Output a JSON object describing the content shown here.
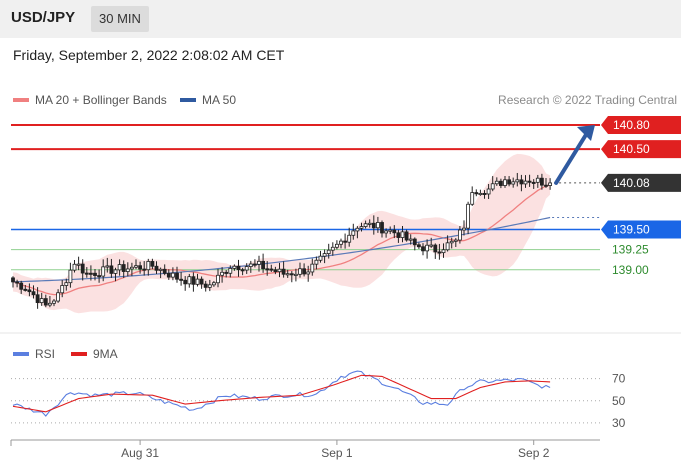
{
  "header": {
    "symbol": "USD/JPY",
    "timeframe": "30 MIN",
    "datetime": "Friday, September 2, 2022 2:08:02 AM CET"
  },
  "legend": {
    "main": [
      {
        "label": "MA 20 + Bollinger Bands",
        "color": "#f08080"
      },
      {
        "label": "MA 50",
        "color": "#2f5aa0"
      }
    ],
    "rsi": [
      {
        "label": "RSI",
        "color": "#5b7fe0"
      },
      {
        "label": "9MA",
        "color": "#e02020"
      }
    ],
    "credit": "Research © 2022 Trading Central"
  },
  "chart_data": [
    {
      "type": "candlestick",
      "title": "USD/JPY",
      "ylim": [
        138.35,
        140.95
      ],
      "levels": [
        {
          "value": 140.8,
          "label": "140.80",
          "kind": "resistance",
          "color": "#e02020"
        },
        {
          "value": 140.5,
          "label": "140.50",
          "kind": "resistance",
          "color": "#e02020"
        },
        {
          "value": 140.08,
          "label": "140.08",
          "kind": "current",
          "color": "#333333"
        },
        {
          "value": 139.5,
          "label": "139.50",
          "kind": "pivot",
          "color": "#1a66e6"
        },
        {
          "value": 139.25,
          "label": "139.25",
          "kind": "support",
          "color": "#2e8b2e"
        },
        {
          "value": 139.0,
          "label": "139.00",
          "kind": "support",
          "color": "#2e8b2e"
        }
      ],
      "x_ticks": [
        {
          "index": 31,
          "label": "Aug 31"
        },
        {
          "index": 79,
          "label": "Sep 1"
        },
        {
          "index": 127,
          "label": "Sep 2"
        }
      ],
      "candles_count": 132,
      "anchors": [
        {
          "i": 0,
          "close": 138.85
        },
        {
          "i": 3,
          "close": 138.78
        },
        {
          "i": 8,
          "close": 138.55
        },
        {
          "i": 11,
          "close": 138.68
        },
        {
          "i": 15,
          "close": 139.1
        },
        {
          "i": 18,
          "close": 138.95
        },
        {
          "i": 24,
          "close": 139.0
        },
        {
          "i": 34,
          "close": 139.05
        },
        {
          "i": 40,
          "close": 138.9
        },
        {
          "i": 48,
          "close": 138.8
        },
        {
          "i": 53,
          "close": 139.05
        },
        {
          "i": 60,
          "close": 139.05
        },
        {
          "i": 66,
          "close": 138.95
        },
        {
          "i": 72,
          "close": 139.0
        },
        {
          "i": 76,
          "close": 139.15
        },
        {
          "i": 80,
          "close": 139.35
        },
        {
          "i": 84,
          "close": 139.55
        },
        {
          "i": 88,
          "close": 139.55
        },
        {
          "i": 94,
          "close": 139.45
        },
        {
          "i": 98,
          "close": 139.3
        },
        {
          "i": 103,
          "close": 139.25
        },
        {
          "i": 108,
          "close": 139.35
        },
        {
          "i": 110,
          "close": 139.55
        },
        {
          "i": 112,
          "close": 140.0
        },
        {
          "i": 116,
          "close": 140.0
        },
        {
          "i": 120,
          "close": 140.12
        },
        {
          "i": 126,
          "close": 140.12
        },
        {
          "i": 131,
          "close": 140.08
        }
      ],
      "ma50": {
        "start": 138.85,
        "end": 139.65
      },
      "target_arrow": {
        "from_value": 140.08,
        "to_value": 140.8
      }
    },
    {
      "type": "line",
      "title": "RSI",
      "ylim": [
        20,
        85
      ],
      "y_ticks": [
        70,
        50,
        30
      ],
      "series": [
        {
          "name": "RSI",
          "color": "#5b7fe0",
          "anchors": [
            {
              "i": 0,
              "v": 47
            },
            {
              "i": 8,
              "v": 38
            },
            {
              "i": 14,
              "v": 58
            },
            {
              "i": 20,
              "v": 55
            },
            {
              "i": 30,
              "v": 57
            },
            {
              "i": 36,
              "v": 50
            },
            {
              "i": 44,
              "v": 42
            },
            {
              "i": 52,
              "v": 55
            },
            {
              "i": 60,
              "v": 52
            },
            {
              "i": 66,
              "v": 55
            },
            {
              "i": 74,
              "v": 56
            },
            {
              "i": 80,
              "v": 72
            },
            {
              "i": 84,
              "v": 76
            },
            {
              "i": 88,
              "v": 70
            },
            {
              "i": 94,
              "v": 60
            },
            {
              "i": 100,
              "v": 48
            },
            {
              "i": 106,
              "v": 47
            },
            {
              "i": 110,
              "v": 62
            },
            {
              "i": 114,
              "v": 67
            },
            {
              "i": 118,
              "v": 68
            },
            {
              "i": 124,
              "v": 69
            },
            {
              "i": 128,
              "v": 64
            },
            {
              "i": 131,
              "v": 62
            }
          ]
        },
        {
          "name": "9MA",
          "color": "#e02020",
          "anchors": [
            {
              "i": 0,
              "v": 45
            },
            {
              "i": 8,
              "v": 40
            },
            {
              "i": 16,
              "v": 52
            },
            {
              "i": 24,
              "v": 56
            },
            {
              "i": 34,
              "v": 55
            },
            {
              "i": 42,
              "v": 47
            },
            {
              "i": 50,
              "v": 50
            },
            {
              "i": 60,
              "v": 53
            },
            {
              "i": 70,
              "v": 55
            },
            {
              "i": 78,
              "v": 64
            },
            {
              "i": 85,
              "v": 73
            },
            {
              "i": 90,
              "v": 72
            },
            {
              "i": 96,
              "v": 62
            },
            {
              "i": 102,
              "v": 52
            },
            {
              "i": 108,
              "v": 52
            },
            {
              "i": 114,
              "v": 62
            },
            {
              "i": 120,
              "v": 67
            },
            {
              "i": 126,
              "v": 68
            },
            {
              "i": 131,
              "v": 67
            }
          ]
        }
      ]
    }
  ]
}
